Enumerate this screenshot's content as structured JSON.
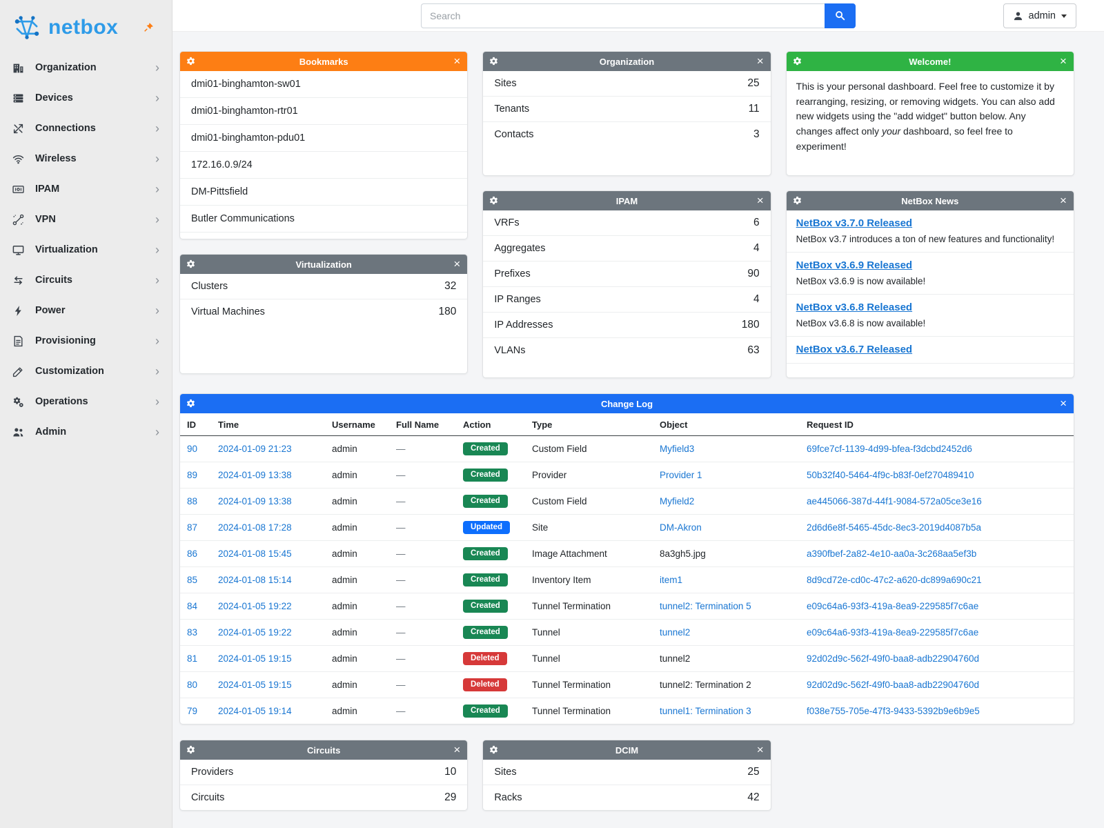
{
  "brand": {
    "name": "netbox"
  },
  "topbar": {
    "search_placeholder": "Search",
    "user_label": "admin"
  },
  "sidebar": {
    "items": [
      {
        "label": "Organization"
      },
      {
        "label": "Devices"
      },
      {
        "label": "Connections"
      },
      {
        "label": "Wireless"
      },
      {
        "label": "IPAM"
      },
      {
        "label": "VPN"
      },
      {
        "label": "Virtualization"
      },
      {
        "label": "Circuits"
      },
      {
        "label": "Power"
      },
      {
        "label": "Provisioning"
      },
      {
        "label": "Customization"
      },
      {
        "label": "Operations"
      },
      {
        "label": "Admin"
      }
    ]
  },
  "widgets": {
    "bookmarks": {
      "title": "Bookmarks",
      "items": [
        "dmi01-binghamton-sw01",
        "dmi01-binghamton-rtr01",
        "dmi01-binghamton-pdu01",
        "172.16.0.9/24",
        "DM-Pittsfield",
        "Butler Communications"
      ]
    },
    "organization": {
      "title": "Organization",
      "stats": [
        {
          "label": "Sites",
          "value": "25"
        },
        {
          "label": "Tenants",
          "value": "11"
        },
        {
          "label": "Contacts",
          "value": "3"
        }
      ]
    },
    "welcome": {
      "title": "Welcome!",
      "text_before": "This is your personal dashboard. Feel free to customize it by rearranging, resizing, or removing widgets. You can also add new widgets using the \"add widget\" button below. Any changes affect only ",
      "text_em": "your",
      "text_after": " dashboard, so feel free to experiment!"
    },
    "virtualization": {
      "title": "Virtualization",
      "stats": [
        {
          "label": "Clusters",
          "value": "32"
        },
        {
          "label": "Virtual Machines",
          "value": "180"
        }
      ]
    },
    "ipam": {
      "title": "IPAM",
      "stats": [
        {
          "label": "VRFs",
          "value": "6"
        },
        {
          "label": "Aggregates",
          "value": "4"
        },
        {
          "label": "Prefixes",
          "value": "90"
        },
        {
          "label": "IP Ranges",
          "value": "4"
        },
        {
          "label": "IP Addresses",
          "value": "180"
        },
        {
          "label": "VLANs",
          "value": "63"
        }
      ]
    },
    "news": {
      "title": "NetBox News",
      "items": [
        {
          "headline": "NetBox v3.7.0 Released",
          "summary": "NetBox v3.7 introduces a ton of new features and functionality!"
        },
        {
          "headline": "NetBox v3.6.9 Released",
          "summary": "NetBox v3.6.9 is now available!"
        },
        {
          "headline": "NetBox v3.6.8 Released",
          "summary": "NetBox v3.6.8 is now available!"
        },
        {
          "headline": "NetBox v3.6.7 Released",
          "summary": ""
        }
      ]
    },
    "circuits": {
      "title": "Circuits",
      "stats": [
        {
          "label": "Providers",
          "value": "10"
        },
        {
          "label": "Circuits",
          "value": "29"
        }
      ]
    },
    "dcim": {
      "title": "DCIM",
      "stats": [
        {
          "label": "Sites",
          "value": "25"
        },
        {
          "label": "Racks",
          "value": "42"
        }
      ]
    }
  },
  "changelog": {
    "title": "Change Log",
    "columns": [
      "ID",
      "Time",
      "Username",
      "Full Name",
      "Action",
      "Type",
      "Object",
      "Request ID"
    ],
    "rows": [
      {
        "id": "90",
        "time": "2024-01-09 21:23",
        "username": "admin",
        "full_name": "—",
        "action": "Created",
        "type": "Custom Field",
        "object": "Myfield3",
        "object_link": true,
        "request_id": "69fce7cf-1139-4d99-bfea-f3dcbd2452d6"
      },
      {
        "id": "89",
        "time": "2024-01-09 13:38",
        "username": "admin",
        "full_name": "—",
        "action": "Created",
        "type": "Provider",
        "object": "Provider 1",
        "object_link": true,
        "request_id": "50b32f40-5464-4f9c-b83f-0ef270489410"
      },
      {
        "id": "88",
        "time": "2024-01-09 13:38",
        "username": "admin",
        "full_name": "—",
        "action": "Created",
        "type": "Custom Field",
        "object": "Myfield2",
        "object_link": true,
        "request_id": "ae445066-387d-44f1-9084-572a05ce3e16"
      },
      {
        "id": "87",
        "time": "2024-01-08 17:28",
        "username": "admin",
        "full_name": "—",
        "action": "Updated",
        "type": "Site",
        "object": "DM-Akron",
        "object_link": true,
        "request_id": "2d6d6e8f-5465-45dc-8ec3-2019d4087b5a"
      },
      {
        "id": "86",
        "time": "2024-01-08 15:45",
        "username": "admin",
        "full_name": "—",
        "action": "Created",
        "type": "Image Attachment",
        "object": "8a3gh5.jpg",
        "object_link": false,
        "request_id": "a390fbef-2a82-4e10-aa0a-3c268aa5ef3b"
      },
      {
        "id": "85",
        "time": "2024-01-08 15:14",
        "username": "admin",
        "full_name": "—",
        "action": "Created",
        "type": "Inventory Item",
        "object": "item1",
        "object_link": true,
        "request_id": "8d9cd72e-cd0c-47c2-a620-dc899a690c21"
      },
      {
        "id": "84",
        "time": "2024-01-05 19:22",
        "username": "admin",
        "full_name": "—",
        "action": "Created",
        "type": "Tunnel Termination",
        "object": "tunnel2: Termination 5",
        "object_link": true,
        "request_id": "e09c64a6-93f3-419a-8ea9-229585f7c6ae"
      },
      {
        "id": "83",
        "time": "2024-01-05 19:22",
        "username": "admin",
        "full_name": "—",
        "action": "Created",
        "type": "Tunnel",
        "object": "tunnel2",
        "object_link": true,
        "request_id": "e09c64a6-93f3-419a-8ea9-229585f7c6ae"
      },
      {
        "id": "81",
        "time": "2024-01-05 19:15",
        "username": "admin",
        "full_name": "—",
        "action": "Deleted",
        "type": "Tunnel",
        "object": "tunnel2",
        "object_link": false,
        "request_id": "92d02d9c-562f-49f0-baa8-adb22904760d"
      },
      {
        "id": "80",
        "time": "2024-01-05 19:15",
        "username": "admin",
        "full_name": "—",
        "action": "Deleted",
        "type": "Tunnel Termination",
        "object": "tunnel2: Termination 2",
        "object_link": false,
        "request_id": "92d02d9c-562f-49f0-baa8-adb22904760d"
      },
      {
        "id": "79",
        "time": "2024-01-05 19:14",
        "username": "admin",
        "full_name": "—",
        "action": "Created",
        "type": "Tunnel Termination",
        "object": "tunnel1: Termination 3",
        "object_link": true,
        "request_id": "f038e755-705e-47f3-9433-5392b9e6b9e5"
      }
    ]
  },
  "colors": {
    "bookmarks_header": "#fd7e14",
    "gray_header": "#6c757d",
    "welcome_header": "#2fb344",
    "changelog_header": "#1b6ef3",
    "created_badge": "#198754",
    "updated_badge": "#0d6efd",
    "deleted_badge": "#d63939",
    "link": "#1976d2"
  }
}
